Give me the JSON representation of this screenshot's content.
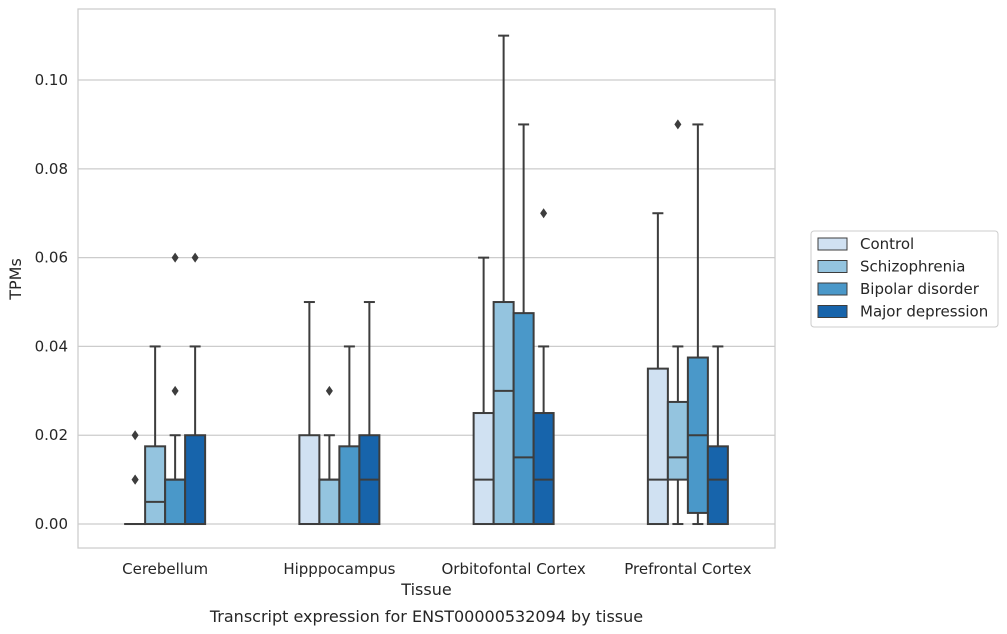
{
  "chart_data": {
    "type": "box",
    "title": "",
    "caption": "Transcript expression for ENST00000532094 by tissue",
    "xlabel": "Tissue",
    "ylabel": "TPMs",
    "ylim": [
      -0.0054,
      0.116
    ],
    "yticks": [
      "0.00",
      "0.02",
      "0.04",
      "0.06",
      "0.08",
      "0.10"
    ],
    "grid": true,
    "legend_position": "right",
    "categories": [
      "Cerebellum",
      "Hipppocampus",
      "Orbitofontal Cortex",
      "Prefrontal Cortex"
    ],
    "series": [
      {
        "name": "Control",
        "color": "#d0e1f2",
        "boxes": [
          {
            "min": 0,
            "q1": 0,
            "median": 0,
            "q3": 0,
            "max": 0,
            "outliers": [
              0.01,
              0.01,
              0.02
            ]
          },
          {
            "min": 0,
            "q1": 0,
            "median": 0,
            "q3": 0.02,
            "max": 0.05,
            "outliers": []
          },
          {
            "min": 0,
            "q1": 0,
            "median": 0.01,
            "q3": 0.025,
            "max": 0.06,
            "outliers": []
          },
          {
            "min": 0,
            "q1": 0,
            "median": 0.01,
            "q3": 0.035,
            "max": 0.07,
            "outliers": []
          }
        ]
      },
      {
        "name": "Schizophrenia",
        "color": "#94c4df",
        "boxes": [
          {
            "min": 0,
            "q1": 0,
            "median": 0.005,
            "q3": 0.0175,
            "max": 0.04,
            "outliers": []
          },
          {
            "min": 0,
            "q1": 0,
            "median": 0.01,
            "q3": 0.01,
            "max": 0.02,
            "outliers": [
              0.03
            ]
          },
          {
            "min": 0,
            "q1": 0,
            "median": 0.03,
            "q3": 0.05,
            "max": 0.11,
            "outliers": []
          },
          {
            "min": 0,
            "q1": 0.01,
            "median": 0.015,
            "q3": 0.0275,
            "max": 0.04,
            "outliers": [
              0.09
            ]
          }
        ]
      },
      {
        "name": "Bipolar disorder",
        "color": "#4a98c9",
        "boxes": [
          {
            "min": 0,
            "q1": 0,
            "median": 0.01,
            "q3": 0.01,
            "max": 0.02,
            "outliers": [
              0.03,
              0.06
            ]
          },
          {
            "min": 0,
            "q1": 0,
            "median": 0,
            "q3": 0.0175,
            "max": 0.04,
            "outliers": []
          },
          {
            "min": 0,
            "q1": 0,
            "median": 0.015,
            "q3": 0.0475,
            "max": 0.09,
            "outliers": []
          },
          {
            "min": 0,
            "q1": 0.0025,
            "median": 0.02,
            "q3": 0.0375,
            "max": 0.09,
            "outliers": []
          }
        ]
      },
      {
        "name": "Major depression",
        "color": "#1764ab",
        "boxes": [
          {
            "min": 0,
            "q1": 0,
            "median": 0,
            "q3": 0.02,
            "max": 0.04,
            "outliers": [
              0.06
            ]
          },
          {
            "min": 0,
            "q1": 0,
            "median": 0.01,
            "q3": 0.02,
            "max": 0.05,
            "outliers": []
          },
          {
            "min": 0,
            "q1": 0,
            "median": 0.01,
            "q3": 0.025,
            "max": 0.04,
            "outliers": [
              0.07
            ]
          },
          {
            "min": 0,
            "q1": 0,
            "median": 0.01,
            "q3": 0.0175,
            "max": 0.04,
            "outliers": []
          }
        ]
      }
    ]
  }
}
